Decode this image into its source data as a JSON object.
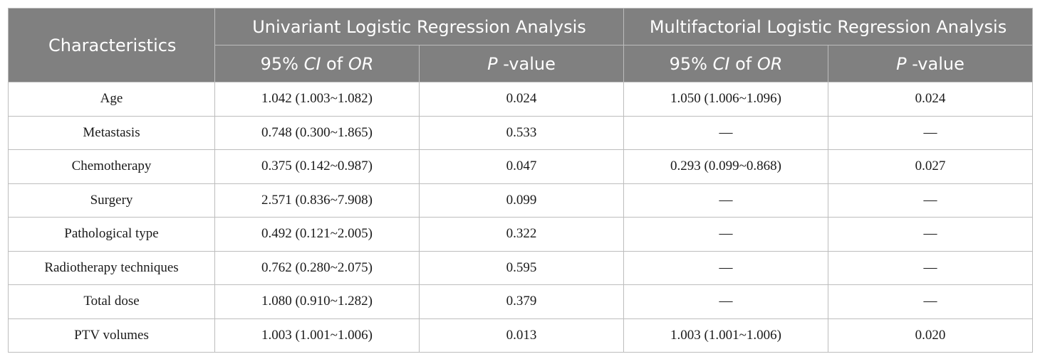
{
  "table": {
    "header": {
      "characteristics": "Characteristics",
      "univariant_group": "Univariant Logistic Regression Analysis",
      "multifactorial_group": "Multifactorial Logistic Regression Analysis",
      "ci_prefix": "95% ",
      "ci_italic": "CI",
      "ci_mid": " of ",
      "or_italic": "OR",
      "p_italic": "P",
      "p_suffix": " -value"
    },
    "rows": [
      {
        "characteristic": "Age",
        "uni_ci": "1.042 (1.003~1.082)",
        "uni_p": "0.024",
        "multi_ci": "1.050 (1.006~1.096)",
        "multi_p": "0.024"
      },
      {
        "characteristic": "Metastasis",
        "uni_ci": "0.748 (0.300~1.865)",
        "uni_p": "0.533",
        "multi_ci": "—",
        "multi_p": "—"
      },
      {
        "characteristic": "Chemotherapy",
        "uni_ci": "0.375 (0.142~0.987)",
        "uni_p": "0.047",
        "multi_ci": "0.293 (0.099~0.868)",
        "multi_p": "0.027"
      },
      {
        "characteristic": "Surgery",
        "uni_ci": "2.571 (0.836~7.908)",
        "uni_p": "0.099",
        "multi_ci": "—",
        "multi_p": "—"
      },
      {
        "characteristic": "Pathological type",
        "uni_ci": "0.492 (0.121~2.005)",
        "uni_p": "0.322",
        "multi_ci": "—",
        "multi_p": "—"
      },
      {
        "characteristic": "Radiotherapy techniques",
        "uni_ci": "0.762 (0.280~2.075)",
        "uni_p": "0.595",
        "multi_ci": "—",
        "multi_p": "—"
      },
      {
        "characteristic": "Total dose",
        "uni_ci": "1.080 (0.910~1.282)",
        "uni_p": "0.379",
        "multi_ci": "—",
        "multi_p": "—"
      },
      {
        "characteristic": "PTV volumes",
        "uni_ci": "1.003 (1.001~1.006)",
        "uni_p": "0.013",
        "multi_ci": "1.003 (1.001~1.006)",
        "multi_p": "0.020"
      }
    ]
  }
}
